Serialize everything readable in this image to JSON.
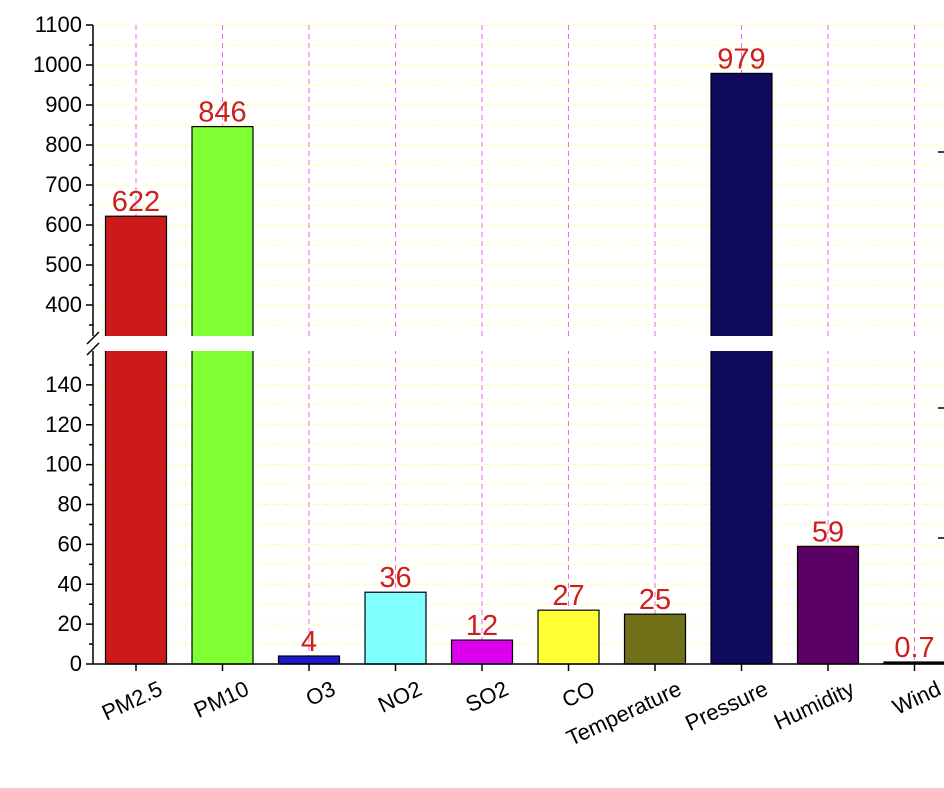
{
  "chart_data": {
    "type": "bar",
    "categories": [
      "PM2.5",
      "PM10",
      "O3",
      "NO2",
      "SO2",
      "CO",
      "Temperature",
      "Pressure",
      "Humidity",
      "Wind"
    ],
    "values": [
      622,
      846,
      4,
      36,
      12,
      27,
      25,
      979,
      59,
      0.7
    ],
    "value_labels": [
      "622",
      "846",
      "4",
      "36",
      "12",
      "27",
      "25",
      "979",
      "59",
      "0.7"
    ],
    "colors": [
      "#cc1a1a",
      "#80ff33",
      "#1a1acc",
      "#80ffff",
      "#dd00ee",
      "#ffff33",
      "#707018",
      "#0f0a5c",
      "#5c0066",
      "#111111"
    ],
    "label_color": "#cc1f1f",
    "xlabel": "",
    "ylabel": "",
    "title": "",
    "y_axis_break": {
      "lower_range": [
        0,
        160
      ],
      "upper_range": [
        300,
        1100
      ],
      "lower_ticks": [
        0,
        20,
        40,
        60,
        80,
        100,
        120,
        140
      ],
      "upper_ticks": [
        400,
        500,
        600,
        700,
        800,
        900,
        1000,
        1100
      ]
    },
    "grid": true,
    "grid_colors": {
      "horizontal": "#ffff99",
      "vertical": "#ee66ee"
    }
  }
}
